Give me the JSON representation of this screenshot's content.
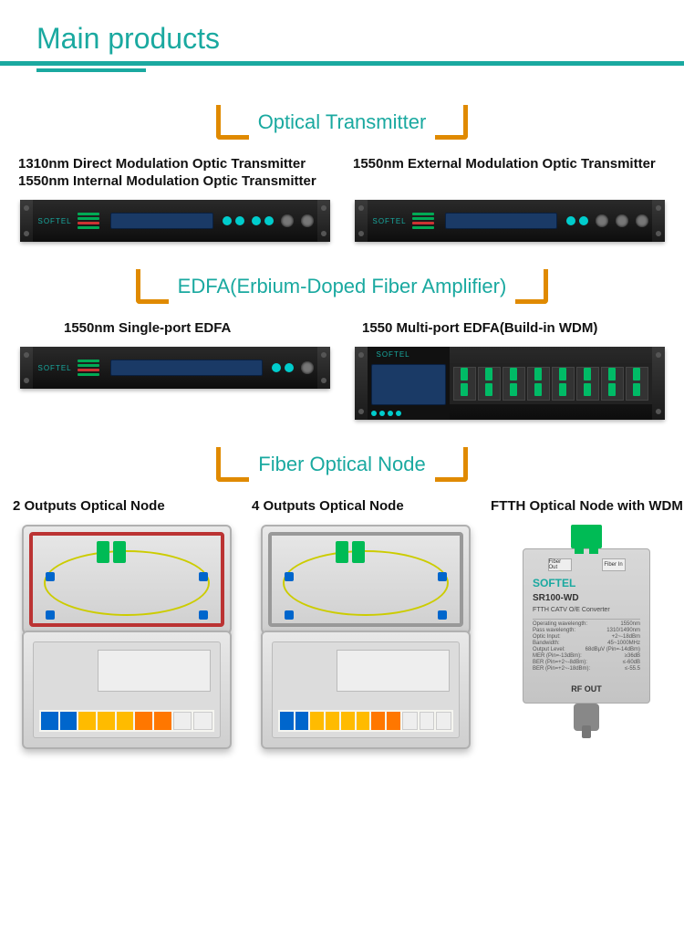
{
  "colors": {
    "accent": "#1aa9a0",
    "bracket": "#e08a00",
    "text": "#111111",
    "background": "#ffffff"
  },
  "title": "Main products",
  "categories": [
    {
      "label": "Optical Transmitter"
    },
    {
      "label": "EDFA(Erbium-Doped Fiber Amplifier)"
    },
    {
      "label": "Fiber Optical Node"
    }
  ],
  "optical_transmitter": {
    "left": {
      "line1": "1310nm Direct Modulation Optic Transmitter",
      "line2": "1550nm Internal Modulation Optic Transmitter"
    },
    "right": {
      "line1": "1550nm External Modulation Optic Transmitter"
    },
    "brand": "SOFTEL"
  },
  "edfa": {
    "left": "1550nm Single-port EDFA",
    "right": "1550 Multi-port EDFA(Build-in WDM)",
    "brand": "SOFTEL"
  },
  "nodes": {
    "n1": "2 Outputs Optical Node",
    "n2": "4 Outputs Optical Node",
    "n3": "FTTH Optical  Node with WDM"
  },
  "ftth": {
    "fiber_out": "Fiber Out",
    "fiber_in": "Fiber In",
    "brand": "SOFTEL",
    "model": "SR100-WD",
    "subtitle": "FTTH CATV O/E Converter",
    "specs": [
      [
        "Operating wavelength:",
        "1550nm"
      ],
      [
        "Pass wavelength:",
        "1310/1490nm"
      ],
      [
        "Optic Input:",
        "+2~-18dBm"
      ],
      [
        "Bandwidth:",
        "45~1000MHz"
      ],
      [
        "Output Level:",
        "68dBμV (Pin=-14dBm)"
      ],
      [
        "MER (Pin=-13dBm):",
        "≥36dB"
      ],
      [
        "BER (Pin=+2~-8dBm):",
        "≤-60dB"
      ],
      [
        "BER (Pin=+2~-18dBm):",
        "≤-55.5"
      ]
    ],
    "rf_out": "RF OUT"
  }
}
